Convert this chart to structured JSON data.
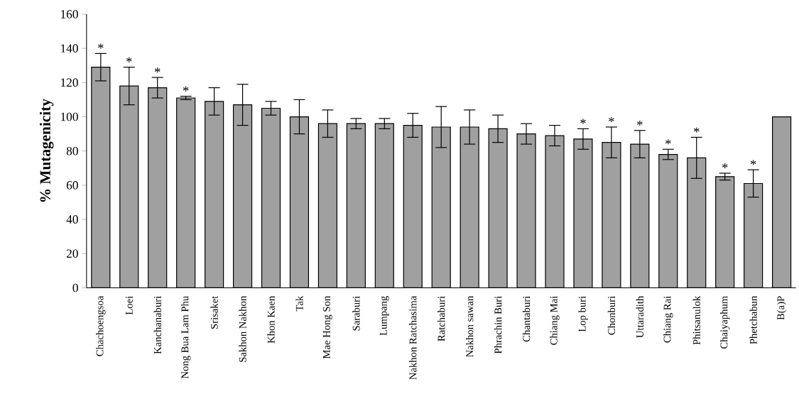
{
  "chart_data": {
    "type": "bar",
    "ylabel": "% Mutagenicity",
    "categories": [
      "Chachoengsoa",
      "Loei",
      "Kanchanaburi",
      "Nong Bua Lam Phu",
      "Srisaket",
      "Sakhon Nakhon",
      "Khon Kaen",
      "Tak",
      "Mae Hong Son",
      "Saraburi",
      "Lumpang",
      "Nakhon Ratchasima",
      "Ratchaburi",
      "Nakhon sawan",
      "Phrachin Buri",
      "Chantaburi",
      "Chiang Mai",
      "Lop buri",
      "Chonburi",
      "Uttaradith",
      "Chiang Rai",
      "Phitsanulok",
      "Chaiyaphum",
      "Phetchabun",
      "B(a)P"
    ],
    "values": [
      129,
      118,
      117,
      111,
      109,
      107,
      105,
      100,
      96,
      96,
      96,
      95,
      94,
      94,
      93,
      90,
      89,
      87,
      85,
      84,
      78,
      76,
      65,
      61,
      100
    ],
    "errors": [
      8,
      11,
      6,
      1,
      8,
      12,
      4,
      10,
      8,
      3,
      3,
      7,
      12,
      10,
      8,
      6,
      6,
      6,
      9,
      8,
      3,
      12,
      2,
      8,
      null
    ],
    "color": "#a0a0a0",
    "ylim": [
      0,
      160
    ],
    "yticks": [
      0,
      20,
      40,
      60,
      80,
      100,
      120,
      140,
      160
    ],
    "annotations": [
      {
        "text": "*",
        "x": "Chachoengsoa",
        "y": 137
      },
      {
        "text": "*",
        "x": "Loei",
        "y": 129
      },
      {
        "text": "*",
        "x": "Kanchanaburi",
        "y": 123
      },
      {
        "text": "*",
        "x": "Nong Bua Lam Phu",
        "y": 112
      },
      {
        "text": "*",
        "x": "Lop buri",
        "y": 93
      },
      {
        "text": "*",
        "x": "Chonburi",
        "y": 94
      },
      {
        "text": "*",
        "x": "Uttaradith",
        "y": 92
      },
      {
        "text": "*",
        "x": "Chiang Rai",
        "y": 81
      },
      {
        "text": "*",
        "x": "Phitsanulok",
        "y": 88
      },
      {
        "text": "*",
        "x": "Chaiyaphum",
        "y": 67
      },
      {
        "text": "*",
        "x": "Phetchabun",
        "y": 69
      }
    ]
  }
}
